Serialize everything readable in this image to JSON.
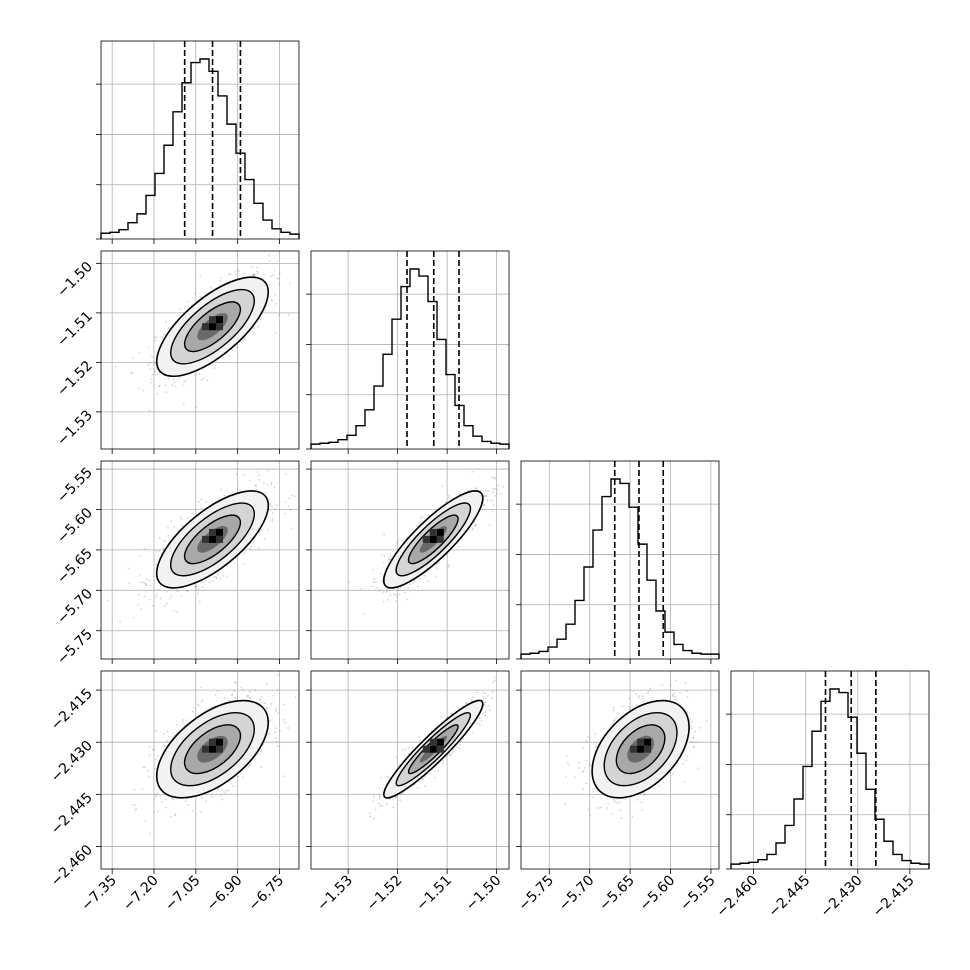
{
  "chart_data": {
    "type": "corner",
    "grid": true,
    "n_params": 4,
    "hist_counts": [
      [
        2,
        3,
        6,
        14,
        24,
        45,
        70,
        102,
        140,
        173,
        196,
        200,
        186,
        158,
        126,
        93,
        63,
        36,
        17,
        7,
        3,
        1
      ],
      [
        1,
        2,
        3,
        6,
        11,
        22,
        40,
        67,
        103,
        143,
        180,
        200,
        192,
        163,
        120,
        80,
        45,
        22,
        10,
        4,
        2,
        1
      ],
      [
        1,
        2,
        4,
        9,
        18,
        35,
        62,
        100,
        142,
        180,
        200,
        195,
        168,
        126,
        85,
        50,
        26,
        12,
        5,
        2,
        1,
        1
      ],
      [
        1,
        2,
        3,
        6,
        12,
        25,
        45,
        75,
        112,
        152,
        186,
        200,
        196,
        168,
        127,
        86,
        52,
        27,
        12,
        5,
        2,
        1
      ]
    ],
    "params": [
      {
        "name": "",
        "range": [
          -7.39,
          -6.68
        ],
        "quantiles": [
          -7.09,
          -6.99,
          -6.89
        ],
        "ticks": [
          -7.35,
          -7.2,
          -7.05,
          -6.9,
          -6.75
        ],
        "tick_labels": [
          "−7.35",
          "−7.20",
          "−7.05",
          "−6.90",
          "−6.75"
        ],
        "mean": -6.99,
        "sd": 0.1
      },
      {
        "name": "",
        "range": [
          -1.5375,
          -1.4975
        ],
        "quantiles": [
          -1.5181,
          -1.5127,
          -1.5076
        ],
        "ticks": [
          -1.53,
          -1.52,
          -1.51,
          -1.5
        ],
        "tick_labels": [
          "−1.53",
          "−1.52",
          "−1.51",
          "−1.50"
        ],
        "mean": -1.5128,
        "sd": 0.005
      },
      {
        "name": "",
        "range": [
          -5.785,
          -5.54
        ],
        "quantiles": [
          -5.669,
          -5.639,
          -5.609
        ],
        "ticks": [
          -5.75,
          -5.7,
          -5.65,
          -5.6,
          -5.55
        ],
        "tick_labels": [
          "−5.75",
          "−5.70",
          "−5.65",
          "−5.60",
          "−5.55"
        ],
        "mean": -5.637,
        "sd": 0.03
      },
      {
        "name": "",
        "range": [
          -2.4665,
          -2.4095
        ],
        "quantiles": [
          -2.4393,
          -2.4319,
          -2.4248
        ],
        "ticks": [
          -2.46,
          -2.445,
          -2.43,
          -2.415
        ],
        "tick_labels": [
          "−2.460",
          "−2.445",
          "−2.430",
          "−2.415"
        ],
        "mean": -2.432,
        "sd": 0.007
      }
    ],
    "pairs": [
      {
        "row": 1,
        "col": 0,
        "corr": 0.7
      },
      {
        "row": 2,
        "col": 0,
        "corr": 0.7
      },
      {
        "row": 2,
        "col": 1,
        "corr": 0.85
      },
      {
        "row": 3,
        "col": 0,
        "corr": 0.55
      },
      {
        "row": 3,
        "col": 1,
        "corr": 0.93
      },
      {
        "row": 3,
        "col": 2,
        "corr": 0.45
      }
    ]
  }
}
